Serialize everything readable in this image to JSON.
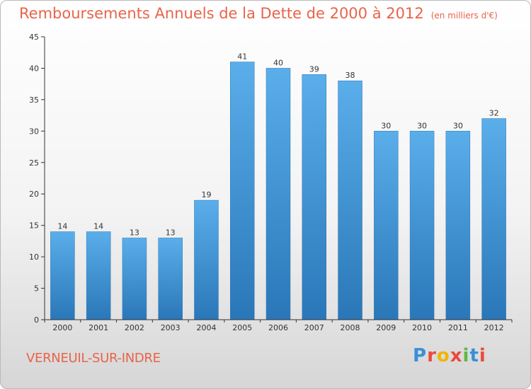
{
  "chart_data": {
    "type": "bar",
    "title": "Remboursements Annuels de la Dette de 2000 à 2012",
    "unit_label": "(en milliers d'€)",
    "categories": [
      "2000",
      "2001",
      "2002",
      "2003",
      "2004",
      "2005",
      "2006",
      "2007",
      "2008",
      "2009",
      "2010",
      "2011",
      "2012"
    ],
    "values": [
      14,
      14,
      13,
      13,
      19,
      41,
      40,
      39,
      38,
      30,
      30,
      30,
      32
    ],
    "ylim": [
      0,
      45
    ],
    "yticks": [
      0,
      5,
      10,
      15,
      20,
      25,
      30,
      35,
      40,
      45
    ],
    "grid": false,
    "bar_color": "#3f95d9",
    "data_labels": true
  },
  "footer": {
    "city": "VERNEUIL-SUR-INDRE",
    "logo_text": "Proxiti",
    "logo_letters": [
      {
        "ch": "P",
        "color": "#3a8fd8"
      },
      {
        "ch": "r",
        "color": "#e84c3d"
      },
      {
        "ch": "o",
        "color": "#f2b400"
      },
      {
        "ch": "x",
        "color": "#e84c3d"
      },
      {
        "ch": "i",
        "color": "#5bb947"
      },
      {
        "ch": "t",
        "color": "#3a8fd8"
      },
      {
        "ch": "i",
        "color": "#e84c3d"
      }
    ]
  },
  "colors": {
    "title": "#e8644a",
    "axis": "#333333"
  }
}
